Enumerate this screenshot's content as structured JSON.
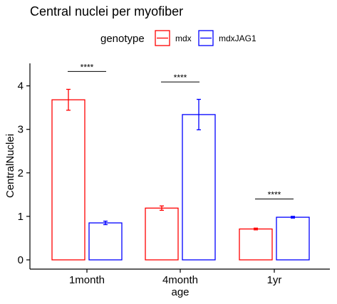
{
  "chart_data": {
    "type": "bar",
    "title": "Central nuclei per myofiber",
    "xlabel": "age",
    "ylabel": "CentralNuclei",
    "categories": [
      "1month",
      "4month",
      "1yr"
    ],
    "ylim": [
      0,
      4.4
    ],
    "yticks": [
      0,
      1,
      2,
      3,
      4
    ],
    "legend": {
      "title": "genotype",
      "position": "top",
      "entries": [
        "mdx",
        "mdxJAG1"
      ]
    },
    "series": [
      {
        "name": "mdx",
        "color": "#ff0000",
        "values": [
          3.68,
          1.19,
          0.71
        ],
        "errors": [
          0.24,
          0.05,
          0.02
        ]
      },
      {
        "name": "mdxJAG1",
        "color": "#0000ff",
        "values": [
          0.85,
          3.34,
          0.98
        ],
        "errors": [
          0.04,
          0.35,
          0.02
        ]
      }
    ],
    "annotations": [
      {
        "category": "1month",
        "label": "****",
        "y": 4.33
      },
      {
        "category": "4month",
        "label": "****",
        "y": 4.09
      },
      {
        "category": "1yr",
        "label": "****",
        "y": 1.4
      }
    ],
    "grid": false
  }
}
